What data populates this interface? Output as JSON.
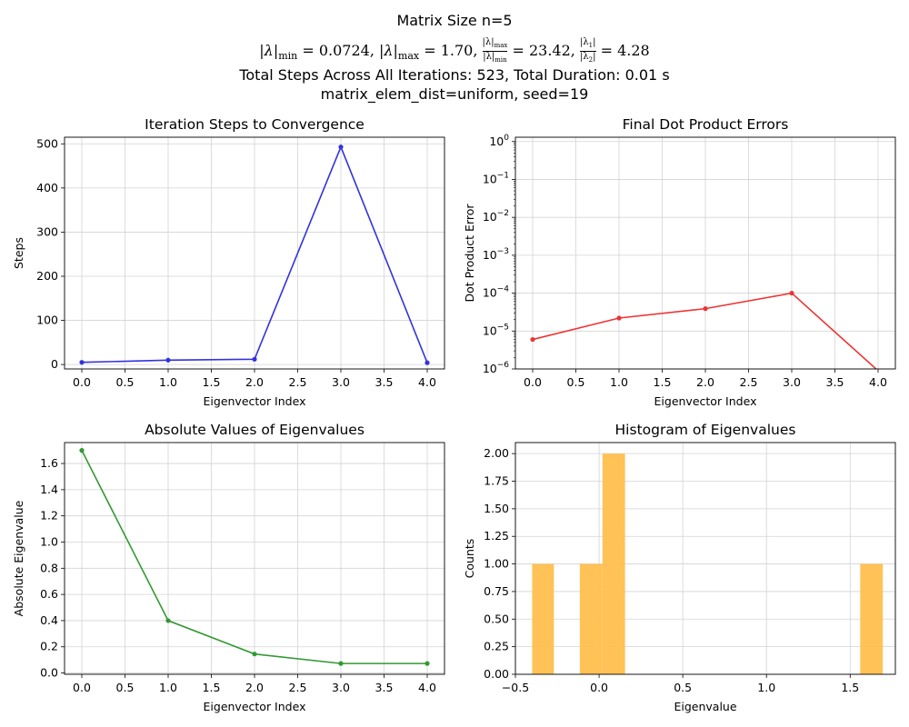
{
  "figure": {
    "title_line1": "Matrix Size n=5",
    "title_line2": "|λ|min = 0.0724, |λ|max = 1.70, |λ|max/|λ|min = 23.42, |λ1|/|λ2| = 4.28",
    "title_line2_parts": {
      "min_value": "0.0724",
      "max_value": "1.70",
      "cond_value": "23.42",
      "ratio_value": "4.28"
    },
    "title_line3": "Total Steps Across All Iterations: 523, Total Duration: 0.01 s",
    "title_line4": "matrix_elem_dist=uniform, seed=19"
  },
  "colors": {
    "steps": "#3333dd",
    "errors": "#ee3333",
    "eigenvalues": "#339933",
    "histogram": "#ffbf4d",
    "grid": "#d3d3d3"
  },
  "chart_data": [
    {
      "type": "line",
      "title": "Iteration Steps to Convergence",
      "xlabel": "Eigenvector Index",
      "ylabel": "Steps",
      "x": [
        0,
        1,
        2,
        3,
        4
      ],
      "series": [
        {
          "values": [
            5,
            10,
            12,
            493,
            4
          ]
        }
      ],
      "xlim": [
        -0.2,
        4.2
      ],
      "ylim": [
        -10,
        515
      ],
      "xticks": [
        0,
        0.5,
        1,
        1.5,
        2,
        2.5,
        3,
        3.5,
        4
      ],
      "xtick_labels": [
        "0.0",
        "0.5",
        "1.0",
        "1.5",
        "2.0",
        "2.5",
        "3.0",
        "3.5",
        "4.0"
      ],
      "yticks": [
        0,
        100,
        200,
        300,
        400,
        500
      ],
      "ytick_labels": [
        "0",
        "100",
        "200",
        "300",
        "400",
        "500"
      ],
      "grid": true
    },
    {
      "type": "line",
      "title": "Final Dot Product Errors",
      "xlabel": "Eigenvector Index",
      "ylabel": "Dot Product Error",
      "yscale": "log",
      "x": [
        0,
        1,
        2,
        3,
        4
      ],
      "series": [
        {
          "values": [
            6e-06,
            2.2e-05,
            3.9e-05,
            0.0001,
            0
          ]
        }
      ],
      "xlim": [
        -0.2,
        4.2
      ],
      "ylim": [
        1e-06,
        1.3
      ],
      "xticks": [
        0,
        0.5,
        1,
        1.5,
        2,
        2.5,
        3,
        3.5,
        4
      ],
      "xtick_labels": [
        "0.0",
        "0.5",
        "1.0",
        "1.5",
        "2.0",
        "2.5",
        "3.0",
        "3.5",
        "4.0"
      ],
      "yticks_exp": [
        -6,
        -5,
        -4,
        -3,
        -2,
        -1,
        0
      ],
      "grid": true
    },
    {
      "type": "line",
      "title": "Absolute Values of Eigenvalues",
      "xlabel": "Eigenvector Index",
      "ylabel": "Absolute Eigenvalue",
      "x": [
        0,
        1,
        2,
        3,
        4
      ],
      "series": [
        {
          "values": [
            1.7,
            0.4,
            0.145,
            0.0724,
            0.0724
          ]
        }
      ],
      "xlim": [
        -0.2,
        4.2
      ],
      "ylim": [
        -0.01,
        1.76
      ],
      "xticks": [
        0,
        0.5,
        1,
        1.5,
        2,
        2.5,
        3,
        3.5,
        4
      ],
      "xtick_labels": [
        "0.0",
        "0.5",
        "1.0",
        "1.5",
        "2.0",
        "2.5",
        "3.0",
        "3.5",
        "4.0"
      ],
      "yticks": [
        0,
        0.2,
        0.4,
        0.6,
        0.8,
        1.0,
        1.2,
        1.4,
        1.6
      ],
      "ytick_labels": [
        "0.0",
        "0.2",
        "0.4",
        "0.6",
        "0.8",
        "1.0",
        "1.2",
        "1.4",
        "1.6"
      ],
      "grid": true
    },
    {
      "type": "bar",
      "title": "Histogram of Eigenvalues",
      "xlabel": "Eigenvalue",
      "ylabel": "Counts",
      "bins": [
        {
          "x0": -0.4,
          "x1": -0.27,
          "count": 1
        },
        {
          "x0": -0.115,
          "x1": 0.02,
          "count": 1
        },
        {
          "x0": 0.02,
          "x1": 0.155,
          "count": 2
        },
        {
          "x0": 1.56,
          "x1": 1.695,
          "count": 1
        }
      ],
      "xlim": [
        -0.5,
        1.77
      ],
      "ylim": [
        0,
        2.1
      ],
      "xticks": [
        -0.5,
        0.0,
        0.5,
        1.0,
        1.5
      ],
      "xtick_labels": [
        "−0.5",
        "0.0",
        "0.5",
        "1.0",
        "1.5"
      ],
      "yticks": [
        0,
        0.25,
        0.5,
        0.75,
        1.0,
        1.25,
        1.5,
        1.75,
        2.0
      ],
      "ytick_labels": [
        "0.00",
        "0.25",
        "0.50",
        "0.75",
        "1.00",
        "1.25",
        "1.50",
        "1.75",
        "2.00"
      ],
      "grid": true
    }
  ]
}
